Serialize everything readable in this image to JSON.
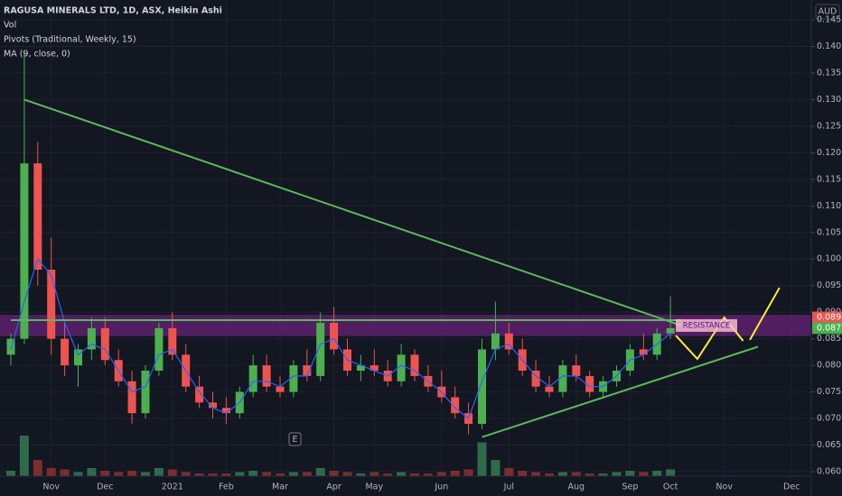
{
  "chart_data": {
    "type": "candlestick",
    "title": "RAGUSA MINERALS LTD, 1D, ASX, Heikin Ashi",
    "indicators": [
      "Vol",
      "Pivots (Traditional, Weekly, 15)",
      "MA (9, close, 0)"
    ],
    "currency": "AUD",
    "up_color": "#4caf50",
    "down_color": "#ef5350",
    "ma_color": "#2962ff",
    "volume_colors": [
      "#2e6b4a",
      "#7a2e2e"
    ],
    "grid": true,
    "categories": [
      null,
      null,
      null,
      "Nov",
      null,
      null,
      null,
      "Dec",
      null,
      null,
      null,
      null,
      "2021",
      null,
      null,
      null,
      "Feb",
      null,
      null,
      null,
      "Mar",
      null,
      null,
      null,
      "Apr",
      null,
      null,
      "May",
      null,
      null,
      null,
      null,
      "Jun",
      null,
      null,
      null,
      null,
      "Jul",
      null,
      null,
      null,
      null,
      "Aug",
      null,
      null,
      null,
      "Sep",
      null,
      null,
      "Oct",
      null,
      null,
      null,
      "Nov",
      null,
      null,
      null,
      null,
      "Dec",
      null
    ],
    "ohlc": [
      [
        0.082,
        0.086,
        0.08,
        0.085
      ],
      [
        0.085,
        0.139,
        0.084,
        0.118
      ],
      [
        0.118,
        0.122,
        0.095,
        0.098
      ],
      [
        0.098,
        0.104,
        0.082,
        0.085
      ],
      [
        0.085,
        0.088,
        0.078,
        0.08
      ],
      [
        0.08,
        0.084,
        0.076,
        0.083
      ],
      [
        0.083,
        0.089,
        0.081,
        0.087
      ],
      [
        0.087,
        0.089,
        0.08,
        0.081
      ],
      [
        0.081,
        0.083,
        0.076,
        0.077
      ],
      [
        0.077,
        0.079,
        0.069,
        0.071
      ],
      [
        0.071,
        0.08,
        0.07,
        0.079
      ],
      [
        0.079,
        0.088,
        0.078,
        0.087
      ],
      [
        0.087,
        0.09,
        0.081,
        0.082
      ],
      [
        0.082,
        0.084,
        0.075,
        0.076
      ],
      [
        0.076,
        0.078,
        0.072,
        0.073
      ],
      [
        0.073,
        0.075,
        0.07,
        0.072
      ],
      [
        0.072,
        0.074,
        0.069,
        0.071
      ],
      [
        0.071,
        0.076,
        0.07,
        0.075
      ],
      [
        0.075,
        0.082,
        0.074,
        0.08
      ],
      [
        0.08,
        0.082,
        0.075,
        0.076
      ],
      [
        0.076,
        0.078,
        0.074,
        0.075
      ],
      [
        0.075,
        0.081,
        0.074,
        0.08
      ],
      [
        0.08,
        0.083,
        0.077,
        0.078
      ],
      [
        0.078,
        0.09,
        0.077,
        0.088
      ],
      [
        0.088,
        0.091,
        0.082,
        0.083
      ],
      [
        0.083,
        0.085,
        0.078,
        0.079
      ],
      [
        0.079,
        0.082,
        0.077,
        0.08
      ],
      [
        0.08,
        0.083,
        0.078,
        0.079
      ],
      [
        0.079,
        0.081,
        0.076,
        0.077
      ],
      [
        0.077,
        0.084,
        0.076,
        0.082
      ],
      [
        0.082,
        0.083,
        0.077,
        0.078
      ],
      [
        0.078,
        0.08,
        0.075,
        0.076
      ],
      [
        0.076,
        0.079,
        0.073,
        0.074
      ],
      [
        0.074,
        0.076,
        0.07,
        0.071
      ],
      [
        0.071,
        0.073,
        0.067,
        0.069
      ],
      [
        0.069,
        0.085,
        0.068,
        0.083
      ],
      [
        0.083,
        0.092,
        0.081,
        0.086
      ],
      [
        0.086,
        0.088,
        0.082,
        0.083
      ],
      [
        0.083,
        0.085,
        0.078,
        0.079
      ],
      [
        0.079,
        0.081,
        0.075,
        0.076
      ],
      [
        0.076,
        0.078,
        0.074,
        0.075
      ],
      [
        0.075,
        0.081,
        0.074,
        0.08
      ],
      [
        0.08,
        0.082,
        0.077,
        0.078
      ],
      [
        0.078,
        0.079,
        0.074,
        0.075
      ],
      [
        0.075,
        0.078,
        0.074,
        0.077
      ],
      [
        0.077,
        0.08,
        0.076,
        0.079
      ],
      [
        0.079,
        0.084,
        0.078,
        0.083
      ],
      [
        0.083,
        0.086,
        0.081,
        0.082
      ],
      [
        0.082,
        0.087,
        0.081,
        0.086
      ],
      [
        0.086,
        0.093,
        0.085,
        0.087
      ],
      null,
      null,
      null,
      null,
      null,
      null,
      null,
      null,
      null,
      null
    ],
    "ma": [
      0.083,
      0.092,
      0.1,
      0.097,
      0.088,
      0.082,
      0.084,
      0.083,
      0.079,
      0.075,
      0.076,
      0.082,
      0.083,
      0.079,
      0.075,
      0.072,
      0.071,
      0.073,
      0.077,
      0.077,
      0.076,
      0.078,
      0.078,
      0.084,
      0.085,
      0.081,
      0.08,
      0.079,
      0.078,
      0.08,
      0.079,
      0.077,
      0.075,
      0.072,
      0.07,
      0.077,
      0.083,
      0.084,
      0.081,
      0.078,
      0.076,
      0.078,
      0.078,
      0.076,
      0.076,
      0.078,
      0.081,
      0.082,
      0.084,
      0.086,
      null,
      null,
      null,
      null,
      null,
      null,
      null,
      null,
      null,
      null
    ],
    "volume": [
      4,
      30,
      12,
      6,
      5,
      3,
      6,
      4,
      3,
      4,
      3,
      6,
      5,
      3,
      2,
      2,
      2,
      3,
      4,
      3,
      2,
      3,
      3,
      6,
      4,
      3,
      2,
      3,
      2,
      3,
      2,
      2,
      3,
      4,
      5,
      25,
      12,
      6,
      4,
      3,
      2,
      3,
      3,
      2,
      2,
      3,
      4,
      3,
      4,
      5,
      null,
      null,
      null,
      null,
      null,
      null,
      null,
      null,
      null,
      null
    ],
    "ylim": [
      0.06,
      0.145
    ],
    "yticks": [
      {
        "value": 0.06,
        "label": "0.060"
      },
      {
        "value": 0.065,
        "label": "0.065"
      },
      {
        "value": 0.07,
        "label": "0.070"
      },
      {
        "value": 0.075,
        "label": "0.075"
      },
      {
        "value": 0.08,
        "label": "0.080"
      },
      {
        "value": 0.085,
        "label": "0.085"
      },
      {
        "value": 0.09,
        "label": "0.090"
      },
      {
        "value": 0.095,
        "label": "0.095"
      },
      {
        "value": 0.1,
        "label": "0.100"
      },
      {
        "value": 0.105,
        "label": "0.105"
      },
      {
        "value": 0.11,
        "label": "0.110"
      },
      {
        "value": 0.115,
        "label": "0.115"
      },
      {
        "value": 0.12,
        "label": "0.120"
      },
      {
        "value": 0.125,
        "label": "0.125"
      },
      {
        "value": 0.13,
        "label": "0.130"
      },
      {
        "value": 0.135,
        "label": "0.135"
      },
      {
        "value": 0.14,
        "label": "0.140"
      },
      {
        "value": 0.145,
        "label": "0.145"
      }
    ],
    "price_badges": [
      {
        "value": 0.089,
        "label": "0.089",
        "color": "#ef5350"
      },
      {
        "value": 0.087,
        "label": "0.087",
        "color": "#4caf50"
      }
    ],
    "zone": {
      "from": 0.0855,
      "to": 0.0895,
      "color": "#9c27b0"
    },
    "resistance_label": "RESISTANCE",
    "earnings_marker": "E",
    "drawings": [
      {
        "color": "#5cb85c",
        "points": [
          [
            1,
            0.13
          ],
          [
            49.8,
            0.0875
          ]
        ]
      },
      {
        "color": "#5cb85c",
        "points": [
          [
            0,
            0.0885
          ],
          [
            49.8,
            0.0885
          ]
        ]
      },
      {
        "color": "#5cb85c",
        "points": [
          [
            35,
            0.0665
          ],
          [
            55.5,
            0.0835
          ]
        ]
      },
      {
        "color": "#ffeb3b",
        "points": [
          [
            49.4,
            0.0856
          ],
          [
            51.0,
            0.0812
          ],
          [
            53.0,
            0.089
          ],
          [
            54.4,
            0.0846
          ]
        ]
      },
      {
        "color": "#ffeb3b",
        "points": [
          [
            54.9,
            0.0848
          ],
          [
            57.1,
            0.0946
          ]
        ]
      }
    ]
  }
}
